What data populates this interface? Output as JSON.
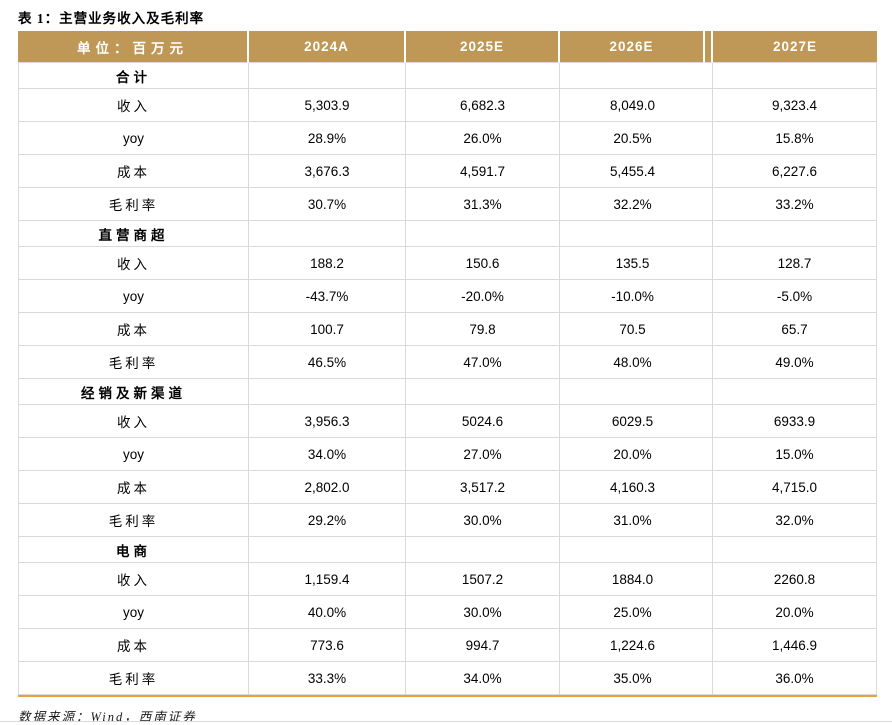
{
  "title": "表 1：主营业务收入及毛利率",
  "source": "数据来源：Wind，西南证券",
  "colors": {
    "header_bg": "#BF9858",
    "header_text": "#FFFFFF",
    "row_border": "#D9D9D9",
    "table_bottom_border": "#E8A13C"
  },
  "table": {
    "unit_label": "单位：百万元",
    "columns": [
      "2024A",
      "2025E",
      "2026E",
      "2027E"
    ],
    "sections": [
      {
        "name": "合计",
        "rows": [
          {
            "label": "收入",
            "values": [
              "5,303.9",
              "6,682.3",
              "8,049.0",
              "9,323.4"
            ]
          },
          {
            "label": "yoy",
            "values": [
              "28.9%",
              "26.0%",
              "20.5%",
              "15.8%"
            ]
          },
          {
            "label": "成本",
            "values": [
              "3,676.3",
              "4,591.7",
              "5,455.4",
              "6,227.6"
            ]
          },
          {
            "label": "毛利率",
            "values": [
              "30.7%",
              "31.3%",
              "32.2%",
              "33.2%"
            ]
          }
        ]
      },
      {
        "name": "直营商超",
        "rows": [
          {
            "label": "收入",
            "values": [
              "188.2",
              "150.6",
              "135.5",
              "128.7"
            ]
          },
          {
            "label": "yoy",
            "values": [
              "-43.7%",
              "-20.0%",
              "-10.0%",
              "-5.0%"
            ]
          },
          {
            "label": "成本",
            "values": [
              "100.7",
              "79.8",
              "70.5",
              "65.7"
            ]
          },
          {
            "label": "毛利率",
            "values": [
              "46.5%",
              "47.0%",
              "48.0%",
              "49.0%"
            ]
          }
        ]
      },
      {
        "name": "经销及新渠道",
        "rows": [
          {
            "label": "收入",
            "values": [
              "3,956.3",
              "5024.6",
              "6029.5",
              "6933.9"
            ]
          },
          {
            "label": "yoy",
            "values": [
              "34.0%",
              "27.0%",
              "20.0%",
              "15.0%"
            ]
          },
          {
            "label": "成本",
            "values": [
              "2,802.0",
              "3,517.2",
              "4,160.3",
              "4,715.0"
            ]
          },
          {
            "label": "毛利率",
            "values": [
              "29.2%",
              "30.0%",
              "31.0%",
              "32.0%"
            ]
          }
        ]
      },
      {
        "name": "电商",
        "rows": [
          {
            "label": "收入",
            "values": [
              "1,159.4",
              "1507.2",
              "1884.0",
              "2260.8"
            ]
          },
          {
            "label": "yoy",
            "values": [
              "40.0%",
              "30.0%",
              "25.0%",
              "20.0%"
            ]
          },
          {
            "label": "成本",
            "values": [
              "773.6",
              "994.7",
              "1,224.6",
              "1,446.9"
            ]
          },
          {
            "label": "毛利率",
            "values": [
              "33.3%",
              "34.0%",
              "35.0%",
              "36.0%"
            ]
          }
        ]
      }
    ]
  }
}
